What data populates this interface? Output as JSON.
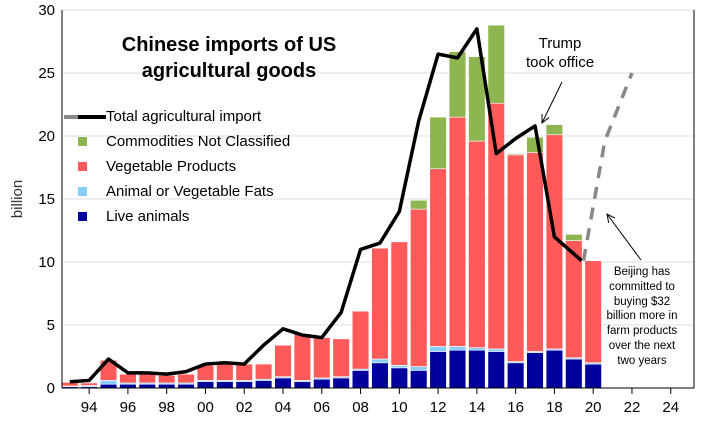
{
  "chart_data": {
    "type": "bar",
    "title": [
      "Chinese imports of US",
      "agricultural goods"
    ],
    "ylabel": "billion",
    "ylim": [
      0,
      30
    ],
    "xlim": [
      1992.6,
      2025.2
    ],
    "yticks": [
      0,
      5,
      10,
      15,
      20,
      25,
      30
    ],
    "xticks": [
      1994,
      1996,
      1998,
      2000,
      2002,
      2004,
      2006,
      2008,
      2010,
      2012,
      2014,
      2016,
      2018,
      2020,
      2022,
      2024
    ],
    "xtick_labels": [
      "94",
      "96",
      "98",
      "00",
      "02",
      "04",
      "06",
      "08",
      "10",
      "12",
      "14",
      "16",
      "18",
      "20",
      "22",
      "24"
    ],
    "categories": [
      1993,
      1994,
      1995,
      1996,
      1997,
      1998,
      1999,
      2000,
      2001,
      2002,
      2003,
      2004,
      2005,
      2006,
      2007,
      2008,
      2009,
      2010,
      2011,
      2012,
      2013,
      2014,
      2015,
      2016,
      2017,
      2018,
      2019
    ],
    "series": [
      {
        "name": "Live animals",
        "color": "#00009c",
        "values": [
          0.1,
          0.1,
          0.3,
          0.3,
          0.3,
          0.3,
          0.3,
          0.5,
          0.5,
          0.5,
          0.6,
          0.8,
          0.5,
          0.7,
          0.8,
          1.4,
          2.0,
          1.6,
          1.4,
          2.9,
          3.0,
          3.0,
          2.9,
          2.0,
          2.8,
          3.0,
          2.3
        ]
      },
      {
        "name": "Animal or Vegetable Fats",
        "color": "#87cefa",
        "values": [
          0.05,
          0.1,
          0.3,
          0.1,
          0.1,
          0.1,
          0.1,
          0.1,
          0.1,
          0.1,
          0.1,
          0.1,
          0.1,
          0.1,
          0.1,
          0.1,
          0.3,
          0.2,
          0.3,
          0.4,
          0.3,
          0.2,
          0.2,
          0.1,
          0.1,
          0.1,
          0.1
        ]
      },
      {
        "name": "Vegetable Products",
        "color": "#ff5a5a",
        "values": [
          0.3,
          0.2,
          1.6,
          0.7,
          0.7,
          0.6,
          0.7,
          1.2,
          1.3,
          1.3,
          1.2,
          2.5,
          3.7,
          3.2,
          3.0,
          4.6,
          8.8,
          9.8,
          12.5,
          14.1,
          18.2,
          16.4,
          19.5,
          16.4,
          15.8,
          17.0,
          9.3
        ]
      },
      {
        "name": "Commodities Not Classified",
        "color": "#8db550",
        "values": [
          0,
          0,
          0,
          0,
          0,
          0,
          0,
          0,
          0,
          0,
          0,
          0,
          0,
          0,
          0,
          0,
          0,
          0,
          0.7,
          4.1,
          5.2,
          6.7,
          6.2,
          0.1,
          1.2,
          0.8,
          0.5
        ]
      }
    ],
    "extra_bars": [
      {
        "x": 2020,
        "series_values": [
          1.9,
          0.1,
          8.1,
          0
        ]
      }
    ],
    "total_series": {
      "name": "Total agricultural import",
      "color": "#000000",
      "x": [
        1993,
        1994,
        1995,
        1996,
        1997,
        1998,
        1999,
        2000,
        2001,
        2002,
        2003,
        2004,
        2005,
        2006,
        2007,
        2008,
        2009,
        2010,
        2011,
        2012,
        2013,
        2014,
        2015,
        2016,
        2017,
        2018,
        2019.4
      ],
      "values": [
        0.5,
        0.6,
        2.3,
        1.2,
        1.2,
        1.1,
        1.3,
        1.9,
        2.0,
        1.9,
        3.4,
        4.7,
        4.2,
        4.0,
        6.0,
        11.0,
        11.5,
        14.0,
        21.2,
        26.5,
        26.2,
        28.5,
        18.6,
        19.8,
        20.8,
        12.0,
        10.1
      ]
    },
    "projection_series": {
      "x": [
        2019.5,
        2020.6,
        2022.0
      ],
      "values": [
        10.1,
        19.6,
        25.0
      ],
      "color": "#888888"
    },
    "legend": {
      "position": "top-left",
      "items": [
        "Total agricultural import",
        "Commodities Not Classified",
        "Vegetable Products",
        "Animal or Vegetable Fats",
        "Live animals"
      ]
    },
    "annotations": {
      "trump": [
        "Trump",
        "took office"
      ],
      "beijing": [
        "Beijing has",
        "committed to",
        "buying $32",
        "billion more in",
        "farm products",
        "over the next",
        "two years"
      ]
    },
    "grid": true
  }
}
